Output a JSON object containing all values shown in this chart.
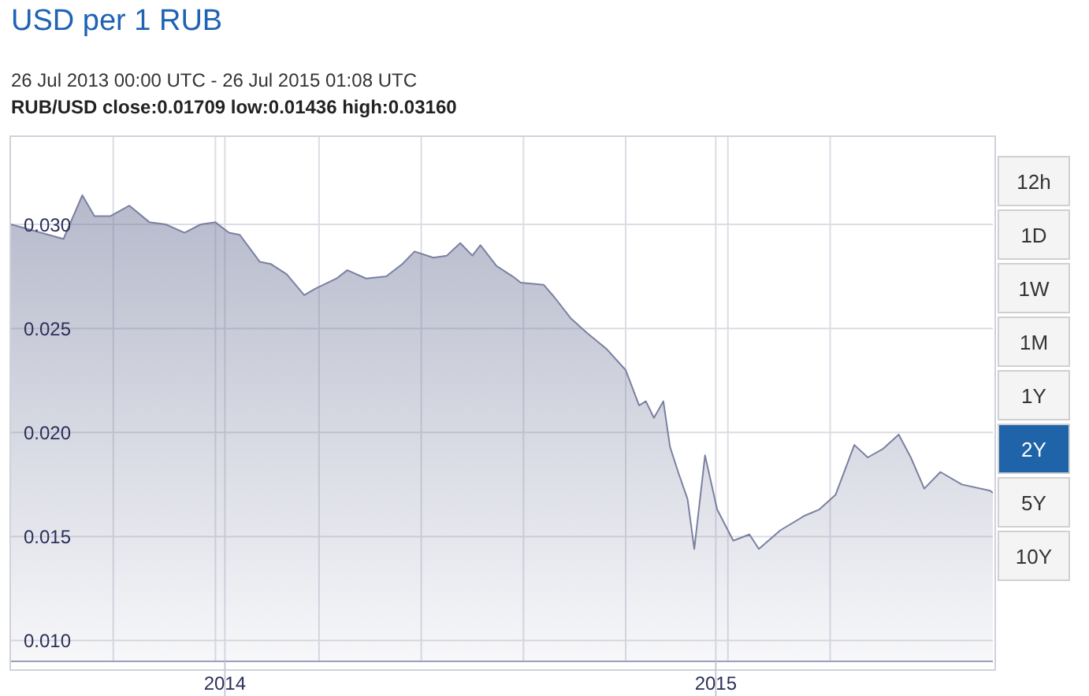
{
  "chart_data": {
    "type": "area",
    "title": "USD per 1 RUB",
    "subtitle": "26 Jul 2013 00:00 UTC - 26 Jul 2015 01:08 UTC",
    "annotations": [
      "RUB/USD close:0.01709 low:0.01436 high:0.03160",
      "12h",
      "1D",
      "1W",
      "1M",
      "1Y",
      "2Y",
      "5Y",
      "10Y"
    ],
    "x": [
      "2013-07-26",
      "2013-09-03",
      "2013-09-17",
      "2013-09-26",
      "2013-10-08",
      "2013-10-22",
      "2013-11-06",
      "2013-11-18",
      "2013-12-02",
      "2013-12-14",
      "2013-12-25",
      "2014-01-04",
      "2014-01-12",
      "2014-01-27",
      "2014-02-04",
      "2014-02-16",
      "2014-03-01",
      "2014-03-09",
      "2014-03-25",
      "2014-04-02",
      "2014-04-16",
      "2014-05-01",
      "2014-05-13",
      "2014-05-22",
      "2014-06-05",
      "2014-06-15",
      "2014-06-25",
      "2014-07-04",
      "2014-07-10",
      "2014-07-22",
      "2014-08-03",
      "2014-08-09",
      "2014-08-26",
      "2014-09-03",
      "2014-09-15",
      "2014-09-27",
      "2014-10-12",
      "2014-10-26",
      "2014-11-05",
      "2014-11-10",
      "2014-11-16",
      "2014-11-23",
      "2014-11-28",
      "2014-12-04",
      "2014-12-11",
      "2014-12-16",
      "2014-12-24",
      "2015-01-02",
      "2015-01-14",
      "2015-01-26",
      "2015-02-02",
      "2015-02-18",
      "2015-03-08",
      "2015-03-19",
      "2015-03-31",
      "2015-04-14",
      "2015-04-24",
      "2015-05-05",
      "2015-05-17",
      "2015-05-26",
      "2015-06-05",
      "2015-06-17",
      "2015-07-03",
      "2015-07-24",
      "2015-07-26"
    ],
    "series": [
      {
        "color": "#7a80a0",
        "values": [
          0.03,
          0.0293,
          0.0314,
          0.0304,
          0.0304,
          0.0309,
          0.0301,
          0.03,
          0.0296,
          0.03,
          0.0301,
          0.0296,
          0.0295,
          0.0282,
          0.0281,
          0.0276,
          0.0266,
          0.0269,
          0.0274,
          0.0278,
          0.0274,
          0.0275,
          0.0281,
          0.0287,
          0.0284,
          0.0285,
          0.0291,
          0.0285,
          0.029,
          0.028,
          0.0275,
          0.0272,
          0.0271,
          0.0265,
          0.0255,
          0.0248,
          0.024,
          0.023,
          0.0213,
          0.0215,
          0.0207,
          0.0215,
          0.0193,
          0.0181,
          0.0168,
          0.0144,
          0.0189,
          0.0163,
          0.0148,
          0.0151,
          0.0144,
          0.0153,
          0.016,
          0.0163,
          0.017,
          0.0194,
          0.0188,
          0.0192,
          0.0199,
          0.0188,
          0.0173,
          0.0181,
          0.0175,
          0.0172,
          0.0171
        ]
      }
    ],
    "xlim": [
      "2013-07-26",
      "2015-07-26"
    ],
    "xticks": [
      {
        "value": "2013-10-10",
        "label": null
      },
      {
        "value": "2013-12-25",
        "label": null
      },
      {
        "value": "2014-01-01",
        "label": "2014"
      },
      {
        "value": "2014-03-12",
        "label": null
      },
      {
        "value": "2014-05-27",
        "label": null
      },
      {
        "value": "2014-08-11",
        "label": null
      },
      {
        "value": "2014-10-26",
        "label": null
      },
      {
        "value": "2015-01-01",
        "label": "2015"
      },
      {
        "value": "2015-01-10",
        "label": null
      },
      {
        "value": "2015-03-27",
        "label": null
      }
    ],
    "ylim": [
      0.009,
      0.0342
    ],
    "yticks": [
      {
        "value": 0.01,
        "label": "0.010"
      },
      {
        "value": 0.015,
        "label": "0.015"
      },
      {
        "value": 0.02,
        "label": "0.020"
      },
      {
        "value": 0.025,
        "label": "0.025"
      },
      {
        "value": 0.03,
        "label": "0.030"
      }
    ],
    "grid": true,
    "legend": false
  }
}
